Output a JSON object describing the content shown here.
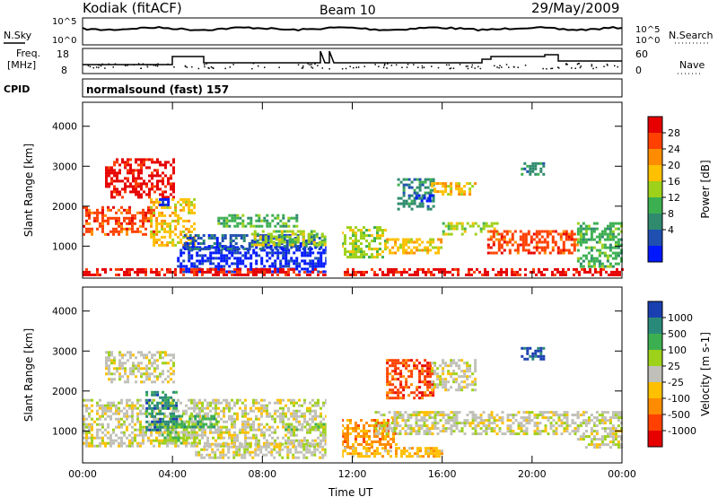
{
  "header": {
    "radar": "Kodiak (fitACF)",
    "beam": "Beam 10",
    "date": "29/May/2009"
  },
  "panel_labels": {
    "nsky": "N.Sky",
    "nsearch": "N.Search",
    "freq": "Freq.",
    "freq_unit": "[MHz]",
    "nave": "Nave",
    "cpid": "CPID",
    "cpid_value": "normalsound (fast) 157"
  },
  "noise_axis": {
    "left_ticks": [
      "10^5",
      "10^0"
    ],
    "right_ticks": [
      "10^5",
      "10^0"
    ]
  },
  "freq_axis": {
    "left_ticks": [
      "18",
      "8"
    ],
    "right_ticks": [
      "60",
      "0"
    ]
  },
  "chart_data": [
    {
      "type": "heatmap",
      "name": "power",
      "ylabel": "Slant Range [km]",
      "y_ticks": [
        "4000",
        "3000",
        "2000",
        "1000"
      ],
      "y_tick_values": [
        4000,
        3000,
        2000,
        1000
      ],
      "ylim": [
        200,
        4600
      ],
      "x_ticks": [
        "00:00",
        "04:00",
        "08:00",
        "12:00",
        "16:00",
        "20:00",
        "00:00"
      ],
      "x_tick_hours": [
        0,
        4,
        8,
        12,
        16,
        20,
        24
      ],
      "colorbar": {
        "label": "Power [dB]",
        "ticks": [
          "28",
          "24",
          "20",
          "16",
          "12",
          "8",
          "4"
        ],
        "colors": [
          "#e60000",
          "#ff4000",
          "#ff8c00",
          "#ffc000",
          "#9ed11a",
          "#3cb050",
          "#2f8a6e",
          "#1f4fb0",
          "#0018ff"
        ]
      },
      "regions": [
        {
          "t0": 0.0,
          "t1": 3.2,
          "r0": 1300,
          "r1": 2000,
          "level": 1
        },
        {
          "t0": 1.0,
          "t1": 4.0,
          "r0": 2200,
          "r1": 3200,
          "level": 0
        },
        {
          "t0": 3.0,
          "t1": 5.0,
          "r0": 1000,
          "r1": 2200,
          "level": 3
        },
        {
          "t0": 3.4,
          "t1": 3.8,
          "r0": 2000,
          "r1": 2200,
          "level": 8
        },
        {
          "t0": 4.2,
          "t1": 10.8,
          "r0": 350,
          "r1": 1000,
          "level": 8
        },
        {
          "t0": 4.5,
          "t1": 10.8,
          "r0": 900,
          "r1": 1300,
          "level": 7
        },
        {
          "t0": 6.0,
          "t1": 9.5,
          "r0": 1500,
          "r1": 1800,
          "level": 5
        },
        {
          "t0": 7.5,
          "t1": 10.8,
          "r0": 1000,
          "r1": 1400,
          "level": 4
        },
        {
          "t0": 0.0,
          "t1": 24.0,
          "r0": 250,
          "r1": 450,
          "level": 0
        },
        {
          "t0": 11.5,
          "t1": 13.5,
          "r0": 700,
          "r1": 1500,
          "level": 4
        },
        {
          "t0": 13.5,
          "t1": 16.0,
          "r0": 800,
          "r1": 1200,
          "level": 3
        },
        {
          "t0": 14.0,
          "t1": 15.6,
          "r0": 1900,
          "r1": 2700,
          "level": 6
        },
        {
          "t0": 14.8,
          "t1": 15.6,
          "r0": 2100,
          "r1": 2300,
          "level": 8
        },
        {
          "t0": 15.5,
          "t1": 17.5,
          "r0": 2300,
          "r1": 2600,
          "level": 3
        },
        {
          "t0": 16.0,
          "t1": 18.5,
          "r0": 1300,
          "r1": 1600,
          "level": 4
        },
        {
          "t0": 18.0,
          "t1": 22.0,
          "r0": 800,
          "r1": 1400,
          "level": 1
        },
        {
          "t0": 19.5,
          "t1": 20.5,
          "r0": 2800,
          "r1": 3100,
          "level": 6
        },
        {
          "t0": 22.0,
          "t1": 24.0,
          "r0": 500,
          "r1": 1600,
          "level": 5
        }
      ]
    },
    {
      "type": "heatmap",
      "name": "velocity",
      "ylabel": "Slant Range [km]",
      "y_ticks": [
        "4000",
        "3000",
        "2000",
        "1000"
      ],
      "y_tick_values": [
        4000,
        3000,
        2000,
        1000
      ],
      "ylim": [
        200,
        4600
      ],
      "x_ticks": [
        "00:00",
        "04:00",
        "08:00",
        "12:00",
        "16:00",
        "20:00",
        "00:00"
      ],
      "x_tick_hours": [
        0,
        4,
        8,
        12,
        16,
        20,
        24
      ],
      "xlabel": "Time UT",
      "colorbar": {
        "label": "Velocity [m s-1]",
        "ticks": [
          "1000",
          "500",
          "100",
          "25",
          "-25",
          "-100",
          "-500",
          "-1000"
        ],
        "colors": [
          "#1a3fb0",
          "#2a8a7a",
          "#3cb050",
          "#9ed11a",
          "#c0c0b8",
          "#ffc000",
          "#ff8c00",
          "#ff4000",
          "#e60000"
        ]
      },
      "regions": [
        {
          "t0": 0.0,
          "t1": 11.0,
          "r0": 600,
          "r1": 1800,
          "level": 4
        },
        {
          "t0": 1.0,
          "t1": 4.0,
          "r0": 2200,
          "r1": 3000,
          "level": 4
        },
        {
          "t0": 2.8,
          "t1": 4.2,
          "r0": 1000,
          "r1": 2000,
          "level": 1
        },
        {
          "t0": 3.5,
          "t1": 5.0,
          "r0": 700,
          "r1": 1200,
          "level": 3
        },
        {
          "t0": 4.0,
          "t1": 6.0,
          "r0": 1100,
          "r1": 1400,
          "level": 2
        },
        {
          "t0": 5.0,
          "t1": 11.0,
          "r0": 350,
          "r1": 700,
          "level": 4
        },
        {
          "t0": 9.0,
          "t1": 11.0,
          "r0": 1000,
          "r1": 1200,
          "level": 3
        },
        {
          "t0": 11.5,
          "t1": 14.0,
          "r0": 600,
          "r1": 1300,
          "level": 6
        },
        {
          "t0": 13.5,
          "t1": 15.6,
          "r0": 1800,
          "r1": 2800,
          "level": 7
        },
        {
          "t0": 15.5,
          "t1": 17.5,
          "r0": 2000,
          "r1": 2800,
          "level": 4
        },
        {
          "t0": 13.0,
          "t1": 22.0,
          "r0": 900,
          "r1": 1500,
          "level": 4
        },
        {
          "t0": 11.5,
          "t1": 16.0,
          "r0": 350,
          "r1": 600,
          "level": 5
        },
        {
          "t0": 19.5,
          "t1": 20.5,
          "r0": 2800,
          "r1": 3100,
          "level": 0
        },
        {
          "t0": 22.0,
          "t1": 24.0,
          "r0": 600,
          "r1": 1500,
          "level": 4
        }
      ]
    }
  ]
}
